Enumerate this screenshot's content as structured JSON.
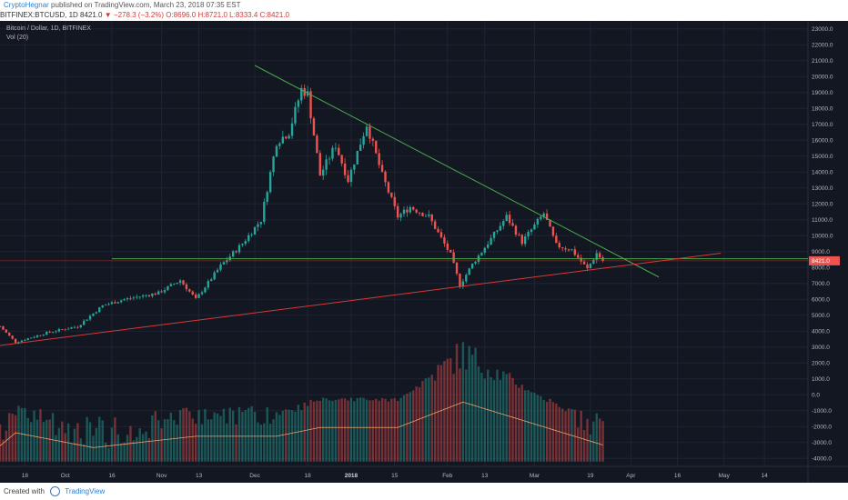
{
  "header": {
    "author": "CryptoHegnar",
    "published": "published on TradingView.com, March 23, 2018 07:35 EST"
  },
  "symbol_line": {
    "symbol": "BITFINEX:BTCUSD, 1D",
    "last": "8421.0",
    "change": "−278.3 (−3.2%)",
    "o": "O:8696.0",
    "h": "H:8721.0",
    "l": "L:8333.4",
    "c": "C:8421.0"
  },
  "legend": {
    "title": "Bitcoin / Dollar, 1D, BITFINEX",
    "indicator": "Vol (20)"
  },
  "footer": {
    "created_with": "Created with",
    "brand": "TradingView"
  },
  "colors": {
    "background": "#131722",
    "up": "#26a69a",
    "down": "#ef5350",
    "green_line": "#4caf50",
    "red_line": "#e53935",
    "volume_ma": "#e8a36b",
    "price_badge": "#ef5350"
  },
  "chart_data": {
    "type": "candlestick",
    "price_axis": {
      "ticks": [
        "23000.0",
        "22000.0",
        "21000.0",
        "20000.0",
        "19000.0",
        "18000.0",
        "17000.0",
        "16000.0",
        "15000.0",
        "14000.0",
        "13000.0",
        "12000.0",
        "11000.0",
        "10000.0",
        "9000.0",
        "8000.0",
        "7000.0",
        "6000.0",
        "5000.0",
        "4000.0",
        "3000.0",
        "2000.0",
        "1000.0",
        "0.0",
        "-1000.0",
        "-2000.0",
        "-3000.0",
        "-4000.0"
      ],
      "ylim": [
        -4500,
        23500
      ]
    },
    "x_axis": {
      "ticks": [
        {
          "label": "18",
          "date": "2017-09-18",
          "bold": false
        },
        {
          "label": "Oct",
          "date": "2017-10-01",
          "bold": false
        },
        {
          "label": "16",
          "date": "2017-10-16",
          "bold": false
        },
        {
          "label": "Nov",
          "date": "2017-11-01",
          "bold": false
        },
        {
          "label": "13",
          "date": "2017-11-13",
          "bold": false
        },
        {
          "label": "Dec",
          "date": "2017-12-01",
          "bold": false
        },
        {
          "label": "18",
          "date": "2017-12-18",
          "bold": false
        },
        {
          "label": "2018",
          "date": "2018-01-01",
          "bold": true
        },
        {
          "label": "15",
          "date": "2018-01-15",
          "bold": false
        },
        {
          "label": "Feb",
          "date": "2018-02-01",
          "bold": false
        },
        {
          "label": "13",
          "date": "2018-02-13",
          "bold": false
        },
        {
          "label": "Mar",
          "date": "2018-03-01",
          "bold": false
        },
        {
          "label": "19",
          "date": "2018-03-19",
          "bold": false
        },
        {
          "label": "Apr",
          "date": "2018-04-01",
          "bold": false
        },
        {
          "label": "16",
          "date": "2018-04-16",
          "bold": false
        },
        {
          "label": "May",
          "date": "2018-05-01",
          "bold": false
        },
        {
          "label": "14",
          "date": "2018-05-14",
          "bold": false
        }
      ],
      "start_date": "2017-09-10",
      "end_date": "2018-05-28"
    },
    "last_price": 8421.0,
    "last_price_label": "8421.0",
    "anchors": [
      {
        "date": "2017-09-10",
        "price": 4300
      },
      {
        "date": "2017-09-15",
        "price": 3300
      },
      {
        "date": "2017-09-25",
        "price": 3900
      },
      {
        "date": "2017-10-05",
        "price": 4300
      },
      {
        "date": "2017-10-13",
        "price": 5600
      },
      {
        "date": "2017-10-20",
        "price": 6000
      },
      {
        "date": "2017-10-31",
        "price": 6400
      },
      {
        "date": "2017-11-07",
        "price": 7200
      },
      {
        "date": "2017-11-12",
        "price": 6000
      },
      {
        "date": "2017-11-20",
        "price": 8100
      },
      {
        "date": "2017-11-27",
        "price": 9500
      },
      {
        "date": "2017-12-03",
        "price": 11000
      },
      {
        "date": "2017-12-08",
        "price": 15900
      },
      {
        "date": "2017-12-12",
        "price": 16500
      },
      {
        "date": "2017-12-16",
        "price": 19200
      },
      {
        "date": "2017-12-18",
        "price": 18900
      },
      {
        "date": "2017-12-22",
        "price": 13800
      },
      {
        "date": "2017-12-27",
        "price": 15700
      },
      {
        "date": "2017-12-31",
        "price": 13500
      },
      {
        "date": "2018-01-06",
        "price": 17000
      },
      {
        "date": "2018-01-11",
        "price": 13800
      },
      {
        "date": "2018-01-16",
        "price": 11200
      },
      {
        "date": "2018-01-20",
        "price": 11800
      },
      {
        "date": "2018-01-26",
        "price": 11200
      },
      {
        "date": "2018-02-02",
        "price": 8800
      },
      {
        "date": "2018-02-05",
        "price": 6900
      },
      {
        "date": "2018-02-09",
        "price": 8200
      },
      {
        "date": "2018-02-15",
        "price": 9800
      },
      {
        "date": "2018-02-20",
        "price": 11200
      },
      {
        "date": "2018-02-25",
        "price": 9600
      },
      {
        "date": "2018-03-04",
        "price": 11400
      },
      {
        "date": "2018-03-08",
        "price": 9400
      },
      {
        "date": "2018-03-13",
        "price": 9100
      },
      {
        "date": "2018-03-18",
        "price": 7900
      },
      {
        "date": "2018-03-21",
        "price": 8900
      },
      {
        "date": "2018-03-23",
        "price": 8421
      }
    ],
    "volume_anchors": [
      {
        "date": "2017-09-10",
        "value": -2400
      },
      {
        "date": "2017-09-15",
        "value": -900
      },
      {
        "date": "2017-10-10",
        "value": -2600
      },
      {
        "date": "2017-11-12",
        "value": -1300
      },
      {
        "date": "2017-12-08",
        "value": -1300
      },
      {
        "date": "2017-12-22",
        "value": -300
      },
      {
        "date": "2018-01-16",
        "value": -300
      },
      {
        "date": "2018-02-06",
        "value": 2600
      },
      {
        "date": "2018-03-23",
        "value": -2300
      }
    ],
    "volume_baseline": -4200,
    "trendlines": [
      {
        "name": "descending",
        "color": "green",
        "from": {
          "date": "2017-12-01",
          "price": 20700
        },
        "to": {
          "date": "2018-04-10",
          "price": 7400
        }
      },
      {
        "name": "support-horizontal",
        "color": "green",
        "from": {
          "date": "2017-10-16",
          "price": 8550
        },
        "to": {
          "date": "2018-05-28",
          "price": 8550
        }
      },
      {
        "name": "ascending",
        "color": "red",
        "from": {
          "date": "2017-09-10",
          "price": 3100
        },
        "to": {
          "date": "2018-04-30",
          "price": 8900
        }
      },
      {
        "name": "price-level",
        "color": "red",
        "from": {
          "date": "2017-09-10",
          "price": 8421
        },
        "to": {
          "date": "2018-05-28",
          "price": 8421
        }
      }
    ]
  }
}
